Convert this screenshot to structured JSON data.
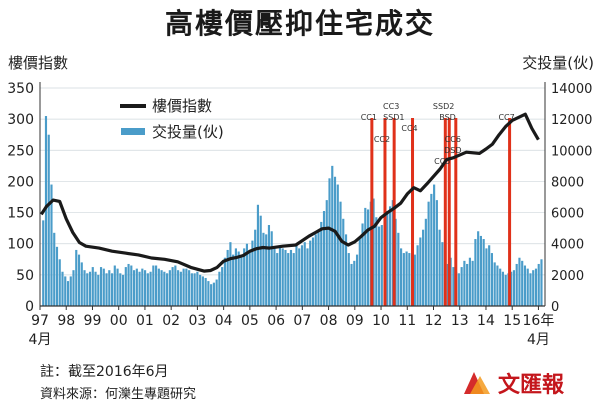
{
  "page": {
    "title": "高樓價壓抑住宅成交",
    "note": "註：截至2016年6月",
    "source": "資料來源：何濼生專題研究",
    "brand": "文匯報"
  },
  "chart_data": {
    "type": "bar+line",
    "left_axis_title": "樓價指數",
    "right_axis_title": "交投量(伙)",
    "left_ylim": [
      0,
      350
    ],
    "left_ticks": [
      0,
      50,
      100,
      150,
      200,
      250,
      300,
      350
    ],
    "right_ylim": [
      0,
      14000
    ],
    "right_ticks": [
      0,
      2000,
      4000,
      6000,
      8000,
      10000,
      12000,
      14000
    ],
    "x_range": [
      1997.25,
      2016.5
    ],
    "x_ticks": [
      {
        "x": 1997.25,
        "label": "97"
      },
      {
        "x": 1998.25,
        "label": "98"
      },
      {
        "x": 1999.25,
        "label": "99"
      },
      {
        "x": 2000.25,
        "label": "00"
      },
      {
        "x": 2001.25,
        "label": "01"
      },
      {
        "x": 2002.25,
        "label": "02"
      },
      {
        "x": 2003.25,
        "label": "03"
      },
      {
        "x": 2004.25,
        "label": "04"
      },
      {
        "x": 2005.25,
        "label": "05"
      },
      {
        "x": 2006.25,
        "label": "06"
      },
      {
        "x": 2007.25,
        "label": "07"
      },
      {
        "x": 2008.25,
        "label": "08"
      },
      {
        "x": 2009.25,
        "label": "09"
      },
      {
        "x": 2010.25,
        "label": "10"
      },
      {
        "x": 2011.25,
        "label": "11"
      },
      {
        "x": 2012.25,
        "label": "12"
      },
      {
        "x": 2013.25,
        "label": "13"
      },
      {
        "x": 2014.25,
        "label": "14"
      },
      {
        "x": 2015.25,
        "label": "15"
      },
      {
        "x": 2016.25,
        "label": "16年"
      }
    ],
    "x_sub_labels": [
      {
        "x": 1997.25,
        "label": "4月"
      },
      {
        "x": 2016.25,
        "label": "4月"
      }
    ],
    "legend": {
      "position": "top-left",
      "items": [
        {
          "name": "樓價指數",
          "color": "#1a1a1a",
          "kind": "line"
        },
        {
          "name": "交投量(伙)",
          "color": "#4a9cc9",
          "kind": "bar"
        }
      ]
    },
    "price_index": {
      "name": "樓價指數",
      "x": [
        1997.3,
        1997.5,
        1997.75,
        1998.0,
        1998.25,
        1998.5,
        1998.75,
        1999.0,
        1999.5,
        2000.0,
        2000.5,
        2001.0,
        2001.5,
        2002.0,
        2002.5,
        2003.0,
        2003.5,
        2003.75,
        2004.0,
        2004.25,
        2004.5,
        2004.75,
        2005.0,
        2005.25,
        2005.5,
        2005.75,
        2006.0,
        2006.5,
        2007.0,
        2007.5,
        2007.75,
        2008.0,
        2008.25,
        2008.5,
        2008.75,
        2009.0,
        2009.25,
        2009.5,
        2009.75,
        2010.0,
        2010.25,
        2010.5,
        2010.75,
        2011.0,
        2011.25,
        2011.5,
        2011.75,
        2012.0,
        2012.25,
        2012.5,
        2012.75,
        2013.0,
        2013.5,
        2014.0,
        2014.25,
        2014.5,
        2014.75,
        2015.0,
        2015.25,
        2015.5,
        2015.75,
        2016.0,
        2016.25
      ],
      "y": [
        147,
        160,
        170,
        168,
        140,
        118,
        102,
        96,
        93,
        88,
        85,
        82,
        77,
        75,
        71,
        62,
        56,
        57,
        62,
        72,
        76,
        78,
        81,
        88,
        92,
        94,
        93,
        96,
        98,
        112,
        118,
        124,
        125,
        120,
        104,
        98,
        103,
        112,
        122,
        128,
        142,
        150,
        157,
        165,
        180,
        190,
        185,
        196,
        208,
        220,
        235,
        238,
        247,
        245,
        252,
        260,
        275,
        288,
        298,
        303,
        308,
        285,
        267
      ]
    },
    "volume": {
      "name": "交投量(伙)",
      "values": [
        5500,
        12200,
        11000,
        7800,
        4700,
        3800,
        3000,
        2200,
        1900,
        1600,
        1900,
        2300,
        3600,
        3300,
        2800,
        2300,
        2100,
        2200,
        2500,
        2200,
        2000,
        2500,
        2400,
        2100,
        2300,
        2100,
        2600,
        2400,
        2100,
        2000,
        2500,
        2700,
        2600,
        2300,
        2400,
        2200,
        2400,
        2300,
        2100,
        2200,
        2600,
        2600,
        2400,
        2300,
        2200,
        2100,
        2300,
        2500,
        2600,
        2300,
        2200,
        2400,
        2400,
        2300,
        2100,
        2100,
        2200,
        2000,
        1900,
        1800,
        1600,
        1400,
        1500,
        1700,
        2200,
        2500,
        3100,
        3600,
        4100,
        3300,
        3700,
        3500,
        3200,
        3700,
        4000,
        3600,
        4200,
        4900,
        6500,
        5800,
        4700,
        4600,
        5200,
        4800,
        3700,
        3400,
        3800,
        3700,
        3600,
        3400,
        3600,
        3400,
        4000,
        3700,
        3900,
        4100,
        3700,
        4200,
        4400,
        4600,
        4800,
        5400,
        6100,
        6800,
        8200,
        9000,
        8300,
        7800,
        6700,
        5600,
        4600,
        3400,
        2700,
        2900,
        3300,
        4300,
        5300,
        6300,
        6200,
        6700,
        6900,
        5700,
        5100,
        5200,
        4800,
        6100,
        6400,
        6800,
        5600,
        4700,
        3700,
        3400,
        3500,
        3400,
        3700,
        3300,
        3900,
        4400,
        4900,
        5600,
        6700,
        7200,
        7800,
        6800,
        4900,
        4100,
        2300,
        2700,
        3100,
        2500,
        2200,
        2100,
        2500,
        2900,
        2700,
        3100,
        2900,
        4300,
        4800,
        4500,
        4300,
        3700,
        3900,
        3400,
        2800,
        2600,
        2400,
        2200,
        2000,
        2100,
        2200,
        2300,
        2700,
        3100,
        2900,
        2600,
        2400,
        2100,
        2300,
        2400,
        2700,
        3000
      ]
    },
    "measures": [
      {
        "label": "CC1",
        "x": 2009.9,
        "label_row": 1
      },
      {
        "label": "CC2",
        "x": 2010.4,
        "label_row": 3
      },
      {
        "label": "CC3",
        "x": 2010.75,
        "label_row": 0
      },
      {
        "label": "SSD1",
        "x": 2010.85,
        "label_row": 1
      },
      {
        "label": "CC4",
        "x": 2011.45,
        "label_row": 2
      },
      {
        "label": "CC5",
        "x": 2012.7,
        "label_row": 5
      },
      {
        "label": "SSD2",
        "x": 2012.75,
        "label_row": 0
      },
      {
        "label": "BSD",
        "x": 2012.9,
        "label_row": 1
      },
      {
        "label": "CC6",
        "x": 2013.1,
        "label_row": 3
      },
      {
        "label": "DSD",
        "x": 2013.1,
        "label_row": 4
      },
      {
        "label": "CC7",
        "x": 2015.15,
        "label_row": 1
      }
    ],
    "measure_lines": [
      2009.9,
      2010.4,
      2010.75,
      2011.45,
      2012.7,
      2012.85,
      2013.1,
      2015.15
    ],
    "colors": {
      "bar": "#4a9cc9",
      "line": "#1a1a1a",
      "measure": "#e0311a",
      "grid": "#cfd8dc",
      "axis": "#333333"
    }
  }
}
